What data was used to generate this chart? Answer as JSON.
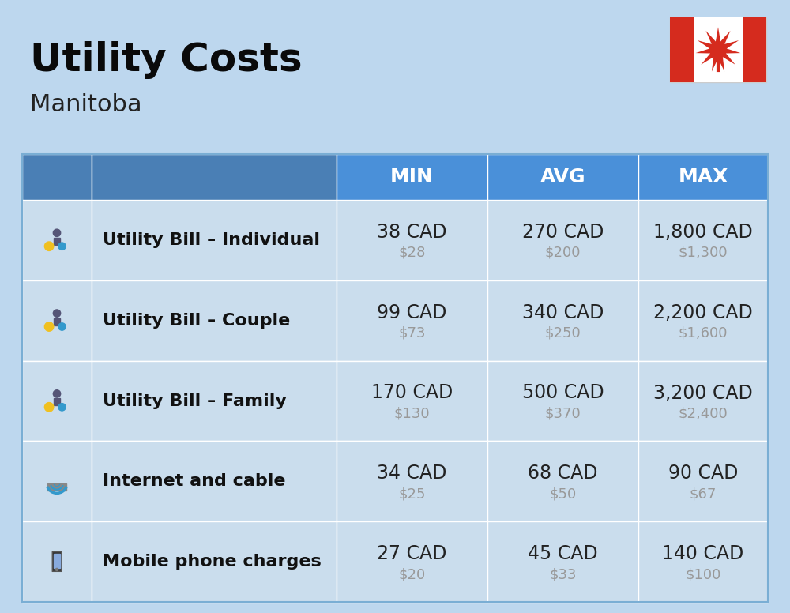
{
  "title": "Utility Costs",
  "subtitle": "Manitoba",
  "bg_color": "#BDD7EE",
  "header_bg_dark": "#4A7FB5",
  "header_bg_bright": "#4A90D9",
  "header_text_color": "#FFFFFF",
  "row_bg_color": "#CADDED",
  "cell_border_color": "#AABFCF",
  "title_fontsize": 36,
  "subtitle_fontsize": 22,
  "header_fontsize": 18,
  "row_label_fontsize": 16,
  "value_fontsize": 17,
  "subvalue_fontsize": 13,
  "rows": [
    {
      "label": "Utility Bill – Individual",
      "min_cad": "38 CAD",
      "min_usd": "$28",
      "avg_cad": "270 CAD",
      "avg_usd": "$200",
      "max_cad": "1,800 CAD",
      "max_usd": "$1,300"
    },
    {
      "label": "Utility Bill – Couple",
      "min_cad": "99 CAD",
      "min_usd": "$73",
      "avg_cad": "340 CAD",
      "avg_usd": "$250",
      "max_cad": "2,200 CAD",
      "max_usd": "$1,600"
    },
    {
      "label": "Utility Bill – Family",
      "min_cad": "170 CAD",
      "min_usd": "$130",
      "avg_cad": "500 CAD",
      "avg_usd": "$370",
      "max_cad": "3,200 CAD",
      "max_usd": "$2,400"
    },
    {
      "label": "Internet and cable",
      "min_cad": "34 CAD",
      "min_usd": "$25",
      "avg_cad": "68 CAD",
      "avg_usd": "$50",
      "max_cad": "90 CAD",
      "max_usd": "$67"
    },
    {
      "label": "Mobile phone charges",
      "min_cad": "27 CAD",
      "min_usd": "$20",
      "avg_cad": "45 CAD",
      "avg_usd": "$33",
      "max_cad": "140 CAD",
      "max_usd": "$100"
    }
  ]
}
